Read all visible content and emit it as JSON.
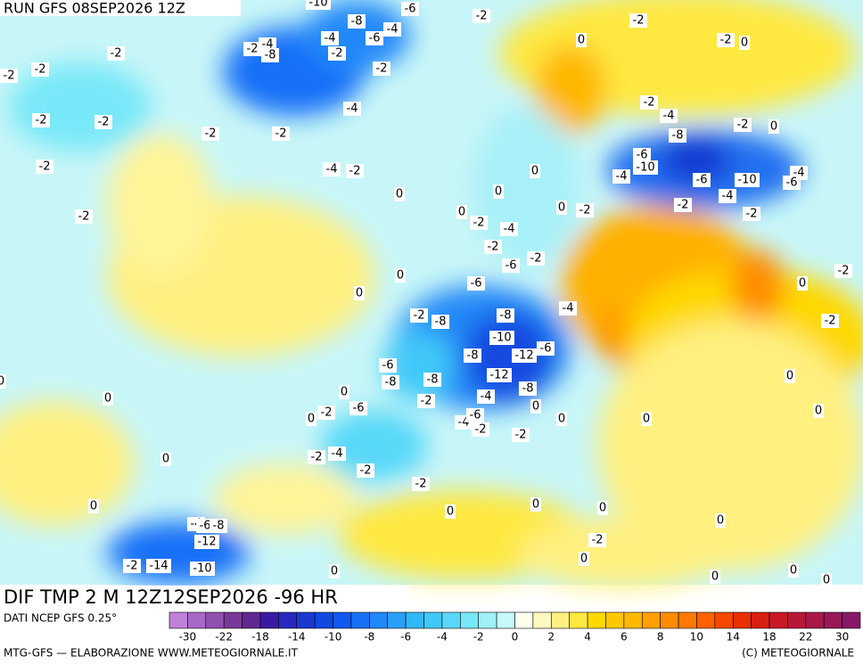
{
  "header": {
    "run": "RUN GFS 08SEP2026 12Z"
  },
  "footer": {
    "field": "DIF TMP 2 M 12Z12SEP2026 -96 HR",
    "source": "DATI NCEP GFS 0.25°",
    "credit": "MTG-GFS — ELABORAZIONE WWW.METEOGIORNALE.IT",
    "copyright": "(C) METEOGIORNALE"
  },
  "colorbar": {
    "colors": [
      "#c080d8",
      "#a868c8",
      "#9050b0",
      "#783898",
      "#602890",
      "#3a1aa0",
      "#2828c0",
      "#1838d0",
      "#1048e0",
      "#1058f0",
      "#1870f8",
      "#2088f8",
      "#28a0f8",
      "#30b8f8",
      "#40c8f8",
      "#58d8f8",
      "#78e8f8",
      "#a0f0f8",
      "#c8f8f8",
      "#fffff0",
      "#fff8c0",
      "#fff080",
      "#ffe840",
      "#ffd800",
      "#ffc800",
      "#ffb800",
      "#ffa000",
      "#ff8c00",
      "#ff7800",
      "#ff6000",
      "#f84800",
      "#e83000",
      "#d82010",
      "#c81828",
      "#b81838",
      "#a81848",
      "#981858",
      "#881868"
    ],
    "ticks": [
      -30,
      -22,
      -18,
      -14,
      -10,
      -8,
      -6,
      -4,
      -2,
      0,
      2,
      4,
      6,
      8,
      10,
      14,
      18,
      22,
      30
    ]
  },
  "contour_labels": [
    -10,
    -6,
    -2,
    -8,
    -4,
    -6,
    -4,
    -2,
    -2,
    -4,
    -8,
    -2,
    -2,
    -2,
    -2,
    -2,
    -2,
    0,
    0,
    -2,
    -2,
    -2,
    -2,
    -4,
    -2,
    -4,
    -2,
    0,
    -8,
    -6,
    -10,
    -4,
    -6,
    -10,
    -4,
    -6,
    -4,
    -2,
    -2,
    -2,
    -2,
    -4,
    -2,
    0,
    0,
    0,
    -2,
    -4,
    -2,
    -6,
    -2,
    0,
    -2,
    0,
    0,
    0,
    -6,
    -2,
    -8,
    -8,
    -4,
    -10,
    -6,
    -12,
    -8,
    -12,
    -6,
    -8,
    -8,
    -8,
    -4,
    -2,
    -4,
    -6,
    -2,
    0,
    0,
    0,
    0,
    0,
    -2,
    -2,
    0,
    -2,
    0,
    -2,
    0,
    -6,
    -4,
    -2,
    -2,
    -2,
    0,
    0,
    0,
    -2,
    0,
    0,
    0,
    0,
    0,
    0,
    0,
    0,
    -4,
    -6,
    -8,
    -12,
    -2,
    -14,
    -10,
    0,
    0
  ]
}
